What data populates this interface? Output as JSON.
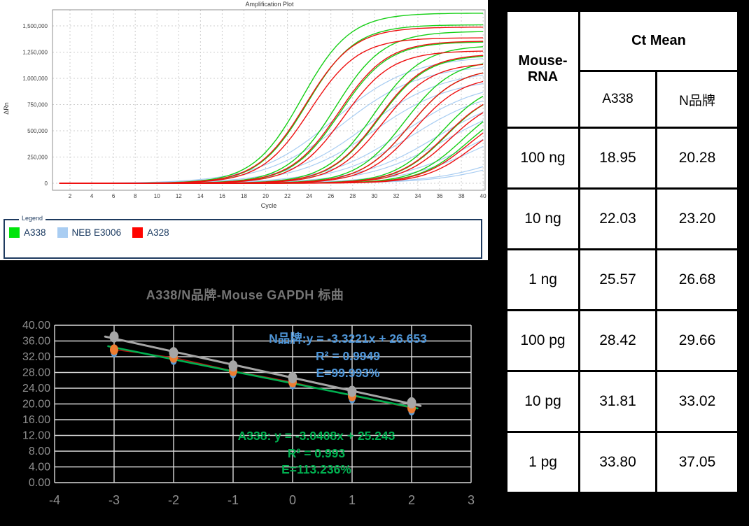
{
  "window": {
    "background": "#000000"
  },
  "amplification_plot": {
    "title": "Amplification Plot",
    "xlabel": "Cycle",
    "ylabel": "ΔRn",
    "x_ticks": [
      2,
      4,
      6,
      8,
      10,
      12,
      14,
      16,
      18,
      20,
      22,
      24,
      26,
      28,
      30,
      32,
      34,
      36,
      38,
      40
    ],
    "y_tick_values": [
      0,
      250000,
      500000,
      750000,
      1000000,
      1250000,
      1500000
    ],
    "y_tick_labels": [
      "0",
      "250,000",
      "500,000",
      "750,000",
      "1,000,000",
      "1,250,000",
      "1,500,000"
    ],
    "legend": {
      "label": "Legend",
      "items": [
        {
          "name": "A338",
          "color": "#00e40b"
        },
        {
          "name": "NEB E3006",
          "color": "#a9cdf2"
        },
        {
          "name": "A328",
          "color": "#ff0400"
        }
      ]
    }
  },
  "chart_data": [
    {
      "type": "line",
      "title": "Amplification Plot",
      "xlabel": "Cycle",
      "ylabel": "ΔRn",
      "xlim": [
        1,
        40
      ],
      "ylim": [
        0,
        1600000
      ],
      "grid": true,
      "series": [
        {
          "name": "NEB E3006",
          "color": "#a9cdf2",
          "rise_rate": 0.28,
          "ct_means": [
            20.28,
            23.2,
            26.68,
            29.66,
            33.02,
            37.05
          ],
          "plateaus": [
            1190000,
            1060000,
            960000,
            860000,
            720000,
            520000
          ]
        },
        {
          "name": "A338",
          "color": "#16cf16",
          "rise_rate": 0.45,
          "ct_means": [
            18.95,
            22.03,
            25.57,
            28.42,
            31.81,
            33.8
          ],
          "plateaus": [
            1590000,
            1420000,
            1290000,
            1160000,
            960000,
            830000
          ]
        },
        {
          "name": "A328",
          "color": "#ee1111",
          "rise_rate": 0.45,
          "ct_means": [
            19.25,
            22.35,
            25.95,
            28.85,
            32.15,
            34.3
          ],
          "plateaus": [
            1460000,
            1330000,
            1210000,
            1080000,
            890000,
            730000
          ]
        }
      ]
    },
    {
      "type": "scatter",
      "title": "A338/N品牌-Mouse GAPDH 标曲",
      "xlabel": "",
      "ylabel": "",
      "x": [
        -3,
        -2,
        -1,
        0,
        1,
        2
      ],
      "xlim": [
        -4,
        3
      ],
      "ylim": [
        0,
        40
      ],
      "x_tick_labels": [
        "-4",
        "-3",
        "-2",
        "-1",
        "0",
        "1",
        "2",
        "3"
      ],
      "y_tick_values": [
        0,
        4,
        8,
        12,
        16,
        20,
        24,
        28,
        32,
        36,
        40
      ],
      "y_tick_labels": [
        "0.00",
        "4.00",
        "8.00",
        "12.00",
        "16.00",
        "20.00",
        "24.00",
        "28.00",
        "32.00",
        "36.00",
        "40.00"
      ],
      "grid": true,
      "series": [
        {
          "name": "N品牌",
          "marker_color": "#a6a6a6",
          "trend_color": "#a6a6a6",
          "values": [
            37.05,
            33.02,
            29.66,
            26.68,
            23.2,
            20.28
          ],
          "slope": -3.3221,
          "intercept": 26.653,
          "r2": "0.9949",
          "efficiency": "99.993%"
        },
        {
          "name": "A338",
          "marker_color": "#ed7d31",
          "data_line_color": "#bb1010",
          "trend_color": "#00b050",
          "shadow_marker_color": "#5b9bd5",
          "values": [
            33.8,
            31.81,
            28.42,
            25.57,
            22.03,
            18.95
          ],
          "slope": -3.0408,
          "intercept": 25.243,
          "r2": "0.993",
          "efficiency": "113.236%"
        }
      ],
      "annotations": [
        {
          "color": "#4f96d8",
          "lines": [
            "N品牌:y = -3.3221x + 26.653",
            "R² = 0.9949",
            "E=99.993%"
          ]
        },
        {
          "color": "#00b050",
          "lines": [
            "A338: y = -3.0408x + 25.243",
            "R² = 0.993",
            "E=113.236%"
          ]
        }
      ]
    }
  ],
  "table": {
    "row_header": "Mouse-RNA",
    "col_group": "Ct Mean",
    "columns": [
      "A338",
      "N品牌"
    ],
    "rows": [
      {
        "label": "100 ng",
        "a338": "18.95",
        "n_brand": "20.28"
      },
      {
        "label": "10 ng",
        "a338": "22.03",
        "n_brand": "23.20"
      },
      {
        "label": "1 ng",
        "a338": "25.57",
        "n_brand": "26.68"
      },
      {
        "label": "100 pg",
        "a338": "28.42",
        "n_brand": "29.66"
      },
      {
        "label": "10 pg",
        "a338": "31.81",
        "n_brand": "33.02"
      },
      {
        "label": "1 pg",
        "a338": "33.80",
        "n_brand": "37.05"
      }
    ]
  }
}
